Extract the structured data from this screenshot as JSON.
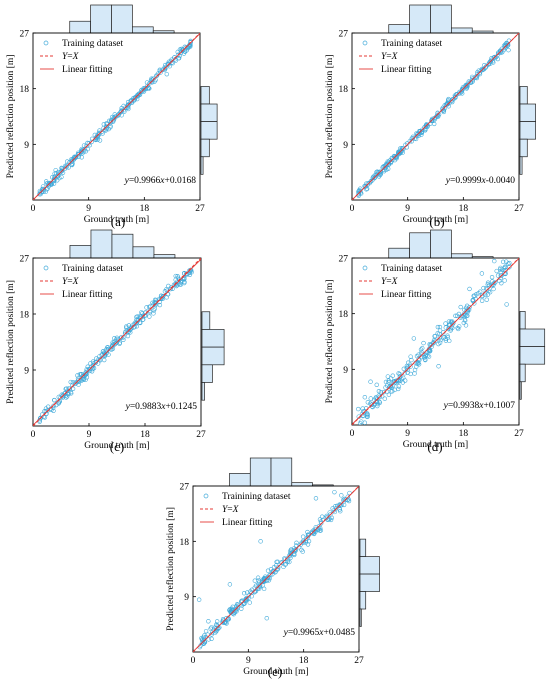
{
  "chart_data": [
    {
      "type": "scatter",
      "panel_label": "(a)",
      "xlabel": "Ground truth [m]",
      "ylabel": "Predicted reflection position [m]",
      "xlim": [
        0,
        27
      ],
      "ylim": [
        0,
        27
      ],
      "xticks": [
        "0",
        "9",
        "18",
        "27"
      ],
      "yticks": [
        "9",
        "18",
        "27"
      ],
      "legend": [
        "Training dataset",
        "Y=X",
        "Linear fitting"
      ],
      "legend_placement": "top-left",
      "equation": "y=0.9966x+0.0168",
      "fit": {
        "slope": 0.9966,
        "intercept": 0.0168
      },
      "noise": 0.35,
      "hist_top": [
        0.42,
        1.0,
        1.0,
        0.22,
        0.08
      ],
      "hist_right": [
        0.32,
        0.62,
        0.62,
        0.32,
        0.08
      ],
      "outliers": []
    },
    {
      "type": "scatter",
      "panel_label": "(b)",
      "xlabel": "Ground truth [m]",
      "ylabel": "Predicted reflection position [m]",
      "xlim": [
        0,
        27
      ],
      "ylim": [
        0,
        27
      ],
      "xticks": [
        "0",
        "9",
        "18",
        "27"
      ],
      "yticks": [
        "9",
        "18",
        "27"
      ],
      "legend": [
        "Training dataset",
        "Y=X",
        "Linear fitting"
      ],
      "legend_placement": "top-left",
      "equation": "y=0.9999x-0.0040",
      "fit": {
        "slope": 0.9999,
        "intercept": -0.004
      },
      "noise": 0.3,
      "hist_top": [
        0.3,
        1.0,
        1.0,
        0.18,
        0.07
      ],
      "hist_right": [
        0.28,
        0.6,
        0.6,
        0.28,
        0.08
      ],
      "outliers": []
    },
    {
      "type": "scatter",
      "panel_label": "(c)",
      "xlabel": "Ground truth [m]",
      "ylabel": "Predicted reflection position [m]",
      "xlim": [
        0,
        27
      ],
      "ylim": [
        0,
        27
      ],
      "xticks": [
        "0",
        "9",
        "18",
        "27"
      ],
      "yticks": [
        "9",
        "18",
        "27"
      ],
      "legend": [
        "Training dataset",
        "Y=X",
        "Linear fitting"
      ],
      "legend_placement": "top-left",
      "equation": "y=0.9883x+0.1245",
      "fit": {
        "slope": 0.9883,
        "intercept": 0.1245
      },
      "noise": 0.5,
      "hist_top": [
        0.45,
        1.0,
        0.85,
        0.4,
        0.12
      ],
      "hist_right": [
        0.3,
        0.85,
        0.85,
        0.4,
        0.1
      ],
      "outliers": []
    },
    {
      "type": "scatter",
      "panel_label": "(d)",
      "xlabel": "Ground truth [m]",
      "ylabel": "Predicted reflection position [m]",
      "xlim": [
        0,
        27
      ],
      "ylim": [
        0,
        27
      ],
      "xticks": [
        "0",
        "9",
        "18",
        "27"
      ],
      "yticks": [
        "9",
        "18",
        "27"
      ],
      "legend": [
        "Training dataset",
        "Y=X",
        "Linear fitting"
      ],
      "legend_placement": "top-left",
      "equation": "y=0.9938x+0.1007",
      "fit": {
        "slope": 0.9938,
        "intercept": 0.1007
      },
      "noise": 0.9,
      "hist_top": [
        0.35,
        0.9,
        1.0,
        0.15,
        0.05
      ],
      "hist_right": [
        0.2,
        0.95,
        0.95,
        0.2,
        0.05
      ],
      "outliers": [
        [
          3,
          7
        ],
        [
          4,
          6.5
        ],
        [
          14,
          9.5
        ],
        [
          21,
          24.5
        ],
        [
          22,
          23
        ],
        [
          25,
          19.5
        ],
        [
          10,
          14
        ],
        [
          19,
          22
        ],
        [
          23,
          26.5
        ]
      ]
    },
    {
      "type": "scatter",
      "panel_label": "(e)",
      "xlabel": "Ground truth [m]",
      "ylabel": "Predicted reflection position [m]",
      "xlim": [
        0,
        27
      ],
      "ylim": [
        0,
        27
      ],
      "xticks": [
        "0",
        "9",
        "18",
        "27"
      ],
      "yticks": [
        "9",
        "18",
        "27"
      ],
      "legend": [
        "Trainining dataset",
        "Y=X",
        "Linear fitting"
      ],
      "legend_placement": "top-left",
      "equation": "y=0.9965x+0.0485",
      "fit": {
        "slope": 0.9965,
        "intercept": 0.0485
      },
      "noise": 0.45,
      "hist_top": [
        0.45,
        1.0,
        1.0,
        0.12,
        0.04
      ],
      "hist_right": [
        0.22,
        0.75,
        0.75,
        0.22,
        0.05
      ],
      "outliers": [
        [
          1,
          8.5
        ],
        [
          2.5,
          5
        ],
        [
          12,
          5.5
        ],
        [
          11,
          18
        ],
        [
          20,
          25
        ],
        [
          21,
          22
        ],
        [
          23,
          26
        ],
        [
          6,
          11
        ],
        [
          3,
          4
        ]
      ]
    }
  ]
}
